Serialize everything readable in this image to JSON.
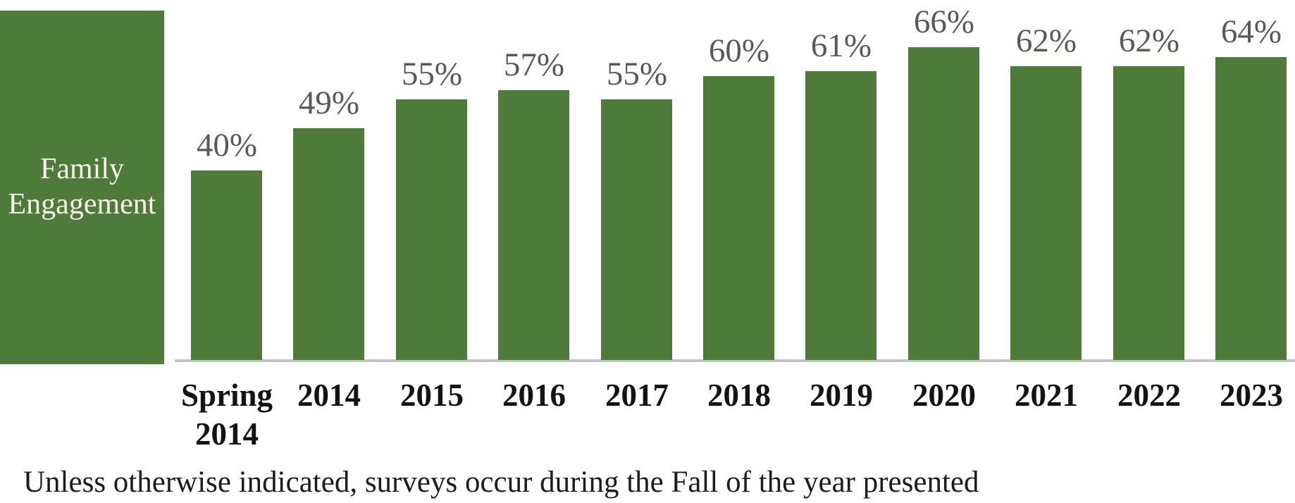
{
  "chart_data": {
    "type": "bar",
    "title": "Family Engagement",
    "categories": [
      "Spring 2014",
      "2014",
      "2015",
      "2016",
      "2017",
      "2018",
      "2019",
      "2020",
      "2021",
      "2022",
      "2023"
    ],
    "values": [
      40,
      49,
      55,
      57,
      55,
      60,
      61,
      66,
      62,
      62,
      64
    ],
    "labels": [
      "40%",
      "49%",
      "55%",
      "57%",
      "55%",
      "60%",
      "61%",
      "66%",
      "62%",
      "62%",
      "64%"
    ],
    "xlabel": "",
    "ylabel": "",
    "ylim": [
      0,
      75
    ],
    "grid": false,
    "legend_position": "none",
    "bar_color": "#4e7a3a",
    "value_label_color": "#595959",
    "category_label_color": "#131313",
    "title_block_bg": "#4e7a3a",
    "title_block_text_color": "#f7f5ea",
    "axis_line_color": "#c4c4c4",
    "footnote": "Unless otherwise indicated, surveys occur during the Fall of the year presented"
  }
}
